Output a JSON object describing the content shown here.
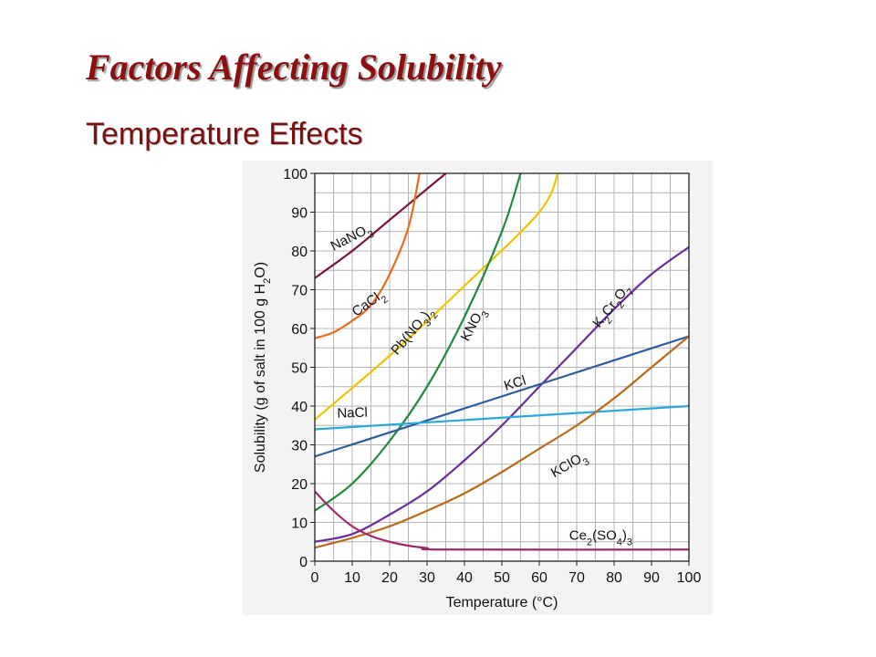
{
  "slide": {
    "title": "Factors Affecting Solubility",
    "subtitle": "Temperature Effects"
  },
  "chart_data": {
    "type": "line",
    "xlabel_text": "Temperature (",
    "xlabel_unit": "°C",
    "xlabel_close": ")",
    "ylabel_text": "Solubility (g of salt in 100 g H",
    "ylabel_sub": "2",
    "ylabel_close": "O)",
    "xlim": [
      0,
      100
    ],
    "ylim": [
      0,
      100
    ],
    "x_ticks": [
      0,
      10,
      20,
      30,
      40,
      50,
      60,
      70,
      80,
      90,
      100
    ],
    "y_ticks": [
      0,
      10,
      20,
      30,
      40,
      50,
      60,
      70,
      80,
      90,
      100
    ],
    "grid": true,
    "series": [
      {
        "name": "NaNO3",
        "color": "#7a1530",
        "points": [
          [
            0,
            73
          ],
          [
            10,
            80
          ],
          [
            20,
            88
          ],
          [
            30,
            96
          ],
          [
            35,
            100
          ]
        ],
        "label": {
          "parts": [
            [
              "NaNO",
              ""
            ],
            [
              "3",
              "sub"
            ]
          ],
          "x": 5,
          "y": 80,
          "angle": -27
        }
      },
      {
        "name": "CaCl2",
        "color": "#ea6a1c",
        "points": [
          [
            0,
            57.5
          ],
          [
            5,
            59
          ],
          [
            10,
            62
          ],
          [
            15,
            66
          ],
          [
            20,
            74
          ],
          [
            25,
            86
          ],
          [
            28,
            100
          ]
        ],
        "label": {
          "parts": [
            [
              "CaCl",
              ""
            ],
            [
              "2",
              "sub"
            ]
          ],
          "x": 11,
          "y": 63,
          "angle": -35
        }
      },
      {
        "name": "Pb(NO3)2",
        "color": "#f2c200",
        "points": [
          [
            0,
            36.5
          ],
          [
            20,
            53
          ],
          [
            40,
            71
          ],
          [
            60,
            90
          ],
          [
            65,
            100
          ]
        ],
        "label": {
          "parts": [
            [
              "Pb(NO",
              ""
            ],
            [
              "3",
              "sub"
            ],
            [
              ")",
              ""
            ],
            [
              "2",
              "sub"
            ]
          ],
          "x": 22,
          "y": 53,
          "angle": -50
        }
      },
      {
        "name": "KNO3",
        "color": "#1e8a3a",
        "points": [
          [
            0,
            13
          ],
          [
            10,
            20
          ],
          [
            20,
            31
          ],
          [
            30,
            45
          ],
          [
            40,
            63
          ],
          [
            50,
            85
          ],
          [
            55,
            100
          ]
        ],
        "label": {
          "parts": [
            [
              "KNO",
              ""
            ],
            [
              "3",
              "sub"
            ]
          ],
          "x": 41,
          "y": 56.5,
          "angle": -62
        }
      },
      {
        "name": "K2Cr2O7",
        "color": "#6a2c9c",
        "points": [
          [
            0,
            5
          ],
          [
            10,
            7
          ],
          [
            20,
            12
          ],
          [
            30,
            18
          ],
          [
            40,
            26
          ],
          [
            50,
            35
          ],
          [
            60,
            45
          ],
          [
            70,
            55
          ],
          [
            80,
            65
          ],
          [
            90,
            74
          ],
          [
            100,
            81
          ]
        ],
        "label": {
          "parts": [
            [
              "K",
              ""
            ],
            [
              "2",
              "sub"
            ],
            [
              "Cr",
              ""
            ],
            [
              "2",
              "sub"
            ],
            [
              "O",
              ""
            ],
            [
              "7",
              "sub"
            ]
          ],
          "x": 76,
          "y": 60,
          "angle": -52
        }
      },
      {
        "name": "KCl",
        "color": "#2c5e9c",
        "points": [
          [
            0,
            27
          ],
          [
            100,
            58
          ]
        ],
        "label": {
          "parts": [
            [
              "KCl",
              ""
            ]
          ],
          "x": 51,
          "y": 44,
          "angle": -17
        }
      },
      {
        "name": "NaCl",
        "color": "#29a8dc",
        "points": [
          [
            0,
            34
          ],
          [
            100,
            40
          ]
        ],
        "label": {
          "parts": [
            [
              "NaCl",
              ""
            ]
          ],
          "x": 6,
          "y": 37,
          "angle": -2
        }
      },
      {
        "name": "KClO3",
        "color": "#b86a18",
        "points": [
          [
            0,
            3.5
          ],
          [
            10,
            6
          ],
          [
            20,
            9
          ],
          [
            30,
            13
          ],
          [
            40,
            17.5
          ],
          [
            50,
            23
          ],
          [
            60,
            29
          ],
          [
            70,
            35
          ],
          [
            80,
            42
          ],
          [
            90,
            50
          ],
          [
            100,
            58
          ]
        ],
        "label": {
          "parts": [
            [
              "KClO",
              ""
            ],
            [
              "3",
              "sub"
            ]
          ],
          "x": 64,
          "y": 21.5,
          "angle": -30
        }
      },
      {
        "name": "Ce2(SO4)3",
        "color": "#9e2a6e",
        "points": [
          [
            0,
            18
          ],
          [
            5,
            13
          ],
          [
            10,
            9
          ],
          [
            15,
            6.5
          ],
          [
            20,
            5
          ],
          [
            25,
            4
          ],
          [
            30,
            3.4
          ],
          [
            35,
            3
          ],
          [
            100,
            3
          ]
        ],
        "label": {
          "parts": [
            [
              "Ce",
              ""
            ],
            [
              "2",
              "sub"
            ],
            [
              "(SO",
              ""
            ],
            [
              "4",
              "sub"
            ],
            [
              ")",
              ""
            ],
            [
              "3",
              "sub"
            ]
          ],
          "x": 68,
          "y": 5.5,
          "angle": 0
        }
      }
    ]
  }
}
